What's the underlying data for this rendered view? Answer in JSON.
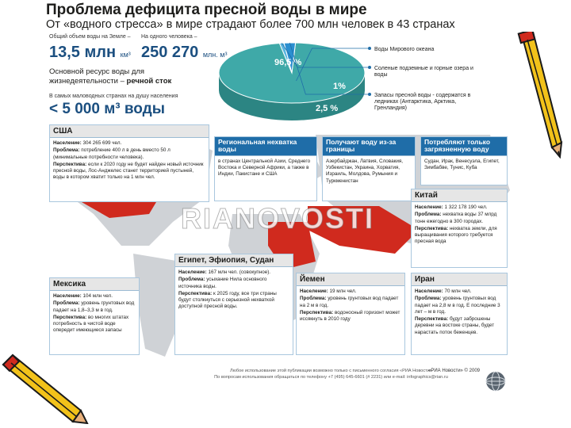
{
  "header": {
    "title": "Проблема дефицита пресной воды в мире",
    "subtitle": "От «водного стресса» в мире страдают более 700 млн человек в 43 странах"
  },
  "stats": {
    "total_label": "Общий объем воды на Земле –",
    "total_value": "13,5 млн",
    "total_unit": "км³",
    "per_person_label": "На одного человека –",
    "per_person_value": "250 270",
    "per_person_unit": "млн. м³",
    "resource_line1": "Основной ресурс воды для",
    "resource_line2_plain": "жизнедеятельности – ",
    "resource_line2_bold": "речной сток",
    "arid_label": "В самых маловодных странах на душу населения",
    "arid_value": "< 5 000 м³ воды"
  },
  "chart_data": {
    "type": "pie",
    "labels": [
      "Воды Мирового океана",
      "Соленые подземные и горные озера и воды",
      "Запасы пресной воды - содержатся в ледниках (Антарктика, Арктика, Гренландия)"
    ],
    "values": [
      96.5,
      1,
      2.5
    ],
    "value_labels": [
      "96,5 %",
      "1%",
      "2,5 %"
    ],
    "colors": [
      "#3fa9a8",
      "#5bb6e0",
      "#2b8fd0"
    ]
  },
  "boxes": {
    "usa": {
      "title": "США",
      "population_label": "Население:",
      "population": "304 265 699 чел.",
      "problem_label": "Проблема:",
      "problem": "потребление 400 л в день вместо 50 л (минимальные потребности человека).",
      "outlook_label": "Перспектива:",
      "outlook": "если к 2020 году не будет найден новый источник пресной воды, Лос-Анджелес станет территорией пустыней, воды в котором хватит только на 1 млн чел."
    },
    "regional": {
      "title": "Региональная нехватка воды",
      "text": "в странах Центральной Азии, Среднего Востока и Северной Африки, а также в Индии, Пакистане и США"
    },
    "borders": {
      "title": "Получают воду из-за границы",
      "text": "Азербайджан, Латвия, Словакия, Узбекистан, Украина, Хорватия, Израиль, Молдова, Румыния и Туркменистан"
    },
    "polluted": {
      "title": "Потребляют только загрязненную воду",
      "text": "Судан, Ирак, Венесуэла, Египет, Зимбабве, Тунис, Куба"
    },
    "china": {
      "title": "Китай",
      "population_label": "Население:",
      "population": "1 322 178 190 чел.",
      "problem_label": "Проблема:",
      "problem": "нехватка воды 37 млрд тонн ежегодно в 300 городах.",
      "outlook_label": "Перспектива:",
      "outlook": "нехватка земли, для выращивания которого требуется пресная вода"
    },
    "egypt": {
      "title": "Египет, Эфиопия, Судан",
      "population_label": "Население:",
      "population": "167 млн чел. (совокупное).",
      "problem_label": "Проблема:",
      "problem": "усыхание Нила основного источника воды.",
      "outlook_label": "Перспектива:",
      "outlook": "к 2025 году, все три страны будут столкнуться с серьезной нехваткой доступной пресной воды."
    },
    "mexico": {
      "title": "Мексика",
      "population_label": "Население:",
      "population": "104 млн чел.",
      "problem_label": "Проблема:",
      "problem": "уровень грунтовых вод падает на 1,8–3,3 м в год.",
      "outlook_label": "Перспектива:",
      "outlook": "во многих штатах потребность в чистой воде опередит имеющиеся запасы"
    },
    "yemen": {
      "title": "Йемен",
      "population_label": "Население:",
      "population": "19 млн чел.",
      "problem_label": "Проблема:",
      "problem": "уровень грунтовых вод падает на 2 м в год.",
      "outlook_label": "Перспектива:",
      "outlook": "водоносный горизонт может иссякнуть в 2010 году"
    },
    "iran": {
      "title": "Иран",
      "population_label": "Население:",
      "population": "70 млн чел.",
      "problem_label": "Проблема:",
      "problem": "уровень грунтовых вод падает на 2,8 м в год. Е последние 3 лет – м в год.",
      "outlook_label": "Перспектива:",
      "outlook": "будут заброшены деревни на востоке страны, будет нарастать поток беженцев."
    }
  },
  "watermark": "RIANOVOSTI",
  "footer": {
    "line1": "Любое использование этой публикации возможно только с письменного согласия «РИА Новости»",
    "line2": "По вопросам использования обращаться по телефону +7 (495) 645-6601 (# 2231) или e-mail: infographics@rian.ru",
    "copyright": "«РИА Новости» © 2009"
  },
  "colors": {
    "accent_blue": "#1f6da8",
    "stat_blue": "#1b4f80",
    "map_red": "#d02a1e",
    "map_gray": "#cfd2d6",
    "ocean": "#3fa9a8"
  }
}
